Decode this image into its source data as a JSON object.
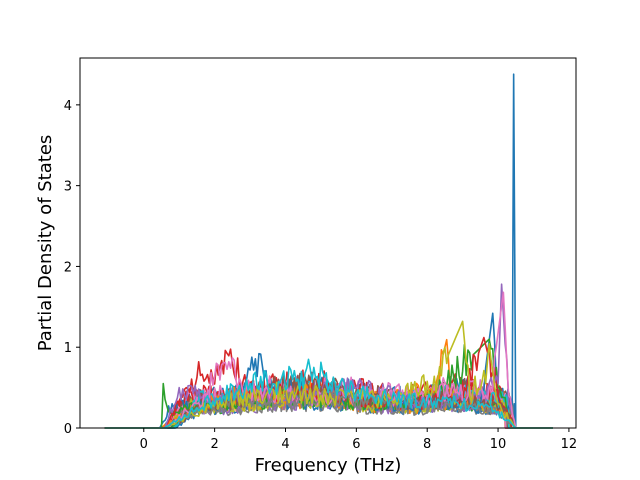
{
  "chart_data": {
    "type": "line",
    "xlabel": "Frequency (THz)",
    "ylabel": "Partial Density of States",
    "xlim": [
      -1.8,
      12.2
    ],
    "ylim": [
      0,
      4.58
    ],
    "xticks": [
      0,
      2,
      4,
      6,
      8,
      10,
      12
    ],
    "yticks": [
      0,
      1,
      2,
      3,
      4
    ],
    "grid": false,
    "legend": "none",
    "frequency_range": [
      -1.1,
      11.55
    ],
    "band_range": [
      0.45,
      10.5
    ],
    "series_count": 30,
    "palette": [
      "#1f77b4",
      "#ff7f0e",
      "#2ca02c",
      "#d62728",
      "#9467bd",
      "#8c564b",
      "#e377c2",
      "#7f7f7f",
      "#bcbd22",
      "#17becf"
    ],
    "series": [
      {
        "values": [
          [
            -1.1,
            0
          ],
          [
            0.45,
            0
          ],
          [
            0.8,
            0.3
          ],
          [
            1.5,
            0.25
          ],
          [
            2.5,
            0.35
          ],
          [
            3.25,
            0.92
          ],
          [
            3.5,
            0.5
          ],
          [
            4.5,
            0.45
          ],
          [
            6.0,
            0.35
          ],
          [
            7.5,
            0.25
          ],
          [
            8.5,
            0.3
          ],
          [
            9.5,
            0.25
          ],
          [
            9.85,
            1.42
          ],
          [
            10.0,
            0.4
          ],
          [
            10.2,
            0.2
          ],
          [
            10.4,
            0.3
          ],
          [
            10.44,
            4.38
          ],
          [
            10.5,
            0
          ],
          [
            11.55,
            0
          ]
        ]
      },
      {
        "values": [
          [
            -1.1,
            0
          ],
          [
            0.5,
            0
          ],
          [
            1.0,
            0.18
          ],
          [
            2.5,
            0.4
          ],
          [
            4.5,
            0.45
          ],
          [
            6.0,
            0.35
          ],
          [
            7.5,
            0.4
          ],
          [
            8.25,
            0.55
          ],
          [
            8.5,
            1.0
          ],
          [
            8.7,
            0.4
          ],
          [
            9.5,
            0.3
          ],
          [
            10.2,
            0.2
          ],
          [
            10.5,
            0
          ],
          [
            11.55,
            0
          ]
        ]
      },
      {
        "values": [
          [
            -1.1,
            0
          ],
          [
            0.5,
            0
          ],
          [
            0.55,
            0.55
          ],
          [
            0.7,
            0.2
          ],
          [
            2.0,
            0.3
          ],
          [
            4.0,
            0.4
          ],
          [
            6.0,
            0.3
          ],
          [
            8.0,
            0.35
          ],
          [
            9.75,
            1.1
          ],
          [
            10.0,
            0.5
          ],
          [
            10.5,
            0
          ],
          [
            11.55,
            0
          ]
        ]
      },
      {
        "values": [
          [
            -1.1,
            0
          ],
          [
            0.6,
            0
          ],
          [
            1.2,
            0.5
          ],
          [
            1.6,
            0.65
          ],
          [
            2.5,
            0.8
          ],
          [
            3.0,
            0.4
          ],
          [
            5.0,
            0.45
          ],
          [
            7.0,
            0.3
          ],
          [
            9.0,
            0.35
          ],
          [
            9.6,
            1.12
          ],
          [
            10.0,
            0.4
          ],
          [
            10.5,
            0
          ],
          [
            11.55,
            0
          ]
        ]
      },
      {
        "values": [
          [
            -1.1,
            0
          ],
          [
            0.6,
            0
          ],
          [
            1.0,
            0.5
          ],
          [
            2.0,
            0.35
          ],
          [
            3.5,
            0.4
          ],
          [
            6.0,
            0.5
          ],
          [
            8.0,
            0.3
          ],
          [
            9.5,
            0.4
          ],
          [
            10.0,
            0.55
          ],
          [
            10.1,
            1.78
          ],
          [
            10.3,
            0.3
          ],
          [
            10.5,
            0
          ],
          [
            11.55,
            0
          ]
        ]
      },
      {
        "values": [
          [
            -1.1,
            0
          ],
          [
            0.6,
            0
          ],
          [
            1.2,
            0.2
          ],
          [
            2.5,
            0.3
          ],
          [
            4.0,
            0.55
          ],
          [
            5.5,
            0.45
          ],
          [
            7.0,
            0.3
          ],
          [
            8.5,
            0.35
          ],
          [
            9.5,
            0.3
          ],
          [
            10.2,
            0.25
          ],
          [
            10.5,
            0
          ],
          [
            11.55,
            0
          ]
        ]
      },
      {
        "values": [
          [
            -1.1,
            0
          ],
          [
            0.6,
            0
          ],
          [
            1.5,
            0.3
          ],
          [
            2.4,
            0.82
          ],
          [
            2.8,
            0.45
          ],
          [
            4.0,
            0.4
          ],
          [
            6.0,
            0.38
          ],
          [
            8.0,
            0.4
          ],
          [
            9.8,
            0.5
          ],
          [
            10.15,
            1.68
          ],
          [
            10.3,
            0.4
          ],
          [
            10.5,
            0
          ],
          [
            11.55,
            0
          ]
        ]
      },
      {
        "values": [
          [
            -1.1,
            0
          ],
          [
            0.6,
            0
          ],
          [
            1.5,
            0.2
          ],
          [
            3.0,
            0.35
          ],
          [
            5.0,
            0.4
          ],
          [
            7.0,
            0.3
          ],
          [
            9.0,
            0.25
          ],
          [
            10.0,
            0.2
          ],
          [
            10.5,
            0
          ],
          [
            11.55,
            0
          ]
        ]
      },
      {
        "values": [
          [
            -1.1,
            0
          ],
          [
            0.6,
            0
          ],
          [
            2.0,
            0.3
          ],
          [
            3.5,
            0.45
          ],
          [
            5.0,
            0.4
          ],
          [
            7.0,
            0.35
          ],
          [
            8.3,
            0.6
          ],
          [
            9.0,
            1.32
          ],
          [
            9.2,
            0.4
          ],
          [
            9.8,
            0.85
          ],
          [
            10.0,
            0.3
          ],
          [
            10.5,
            0
          ],
          [
            11.55,
            0
          ]
        ]
      },
      {
        "values": [
          [
            -1.1,
            0
          ],
          [
            0.6,
            0
          ],
          [
            1.5,
            0.25
          ],
          [
            3.0,
            0.55
          ],
          [
            4.2,
            0.6
          ],
          [
            4.8,
            0.75
          ],
          [
            5.5,
            0.5
          ],
          [
            7.0,
            0.35
          ],
          [
            9.0,
            0.3
          ],
          [
            10.0,
            0.2
          ],
          [
            10.5,
            0
          ],
          [
            11.55,
            0
          ]
        ]
      }
    ]
  }
}
